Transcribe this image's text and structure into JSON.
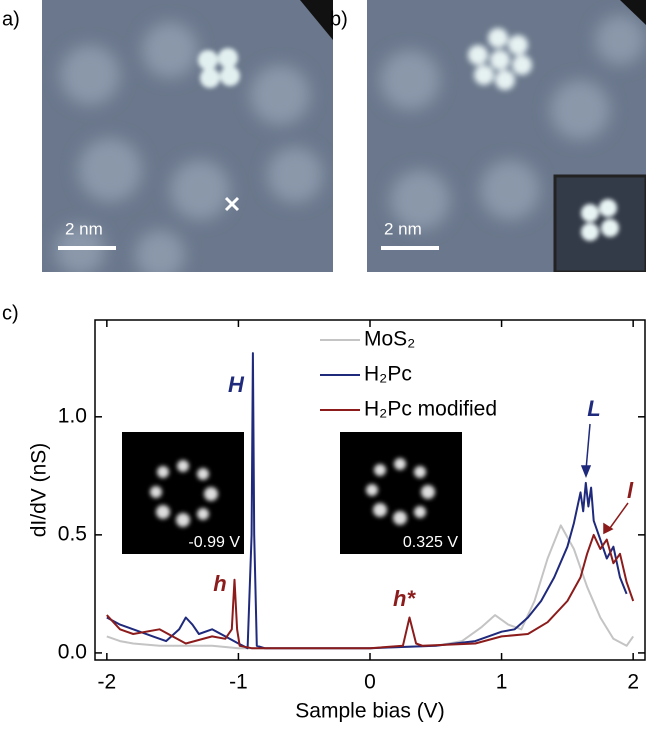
{
  "panels": {
    "a": "a)",
    "b": "b)",
    "c": "c)"
  },
  "scale_bars": [
    "2 nm",
    "2 nm"
  ],
  "chart_data": {
    "type": "line",
    "x_label": "Sample bias (V)",
    "y_label": "dI/dV (nS)",
    "xlim": [
      -2.09,
      2.09
    ],
    "ylim": [
      -0.03,
      1.41
    ],
    "xticks": [
      -2,
      -1,
      0,
      1,
      2
    ],
    "yticks": [
      {
        "value": 0,
        "label": "0.0"
      },
      {
        "value": 0.5,
        "label": "0.5"
      },
      {
        "value": 1,
        "label": "1.0"
      }
    ],
    "legend": "upper right",
    "annotations": [
      "H",
      "h",
      "h*",
      "L",
      "l"
    ],
    "insets": [
      "-0.99 V",
      "0.325 V"
    ],
    "series": [
      {
        "name": "MoS₂",
        "color": "#c4c4c4",
        "x": [
          -2,
          -1.9,
          -1.8,
          -1.6,
          -1.4,
          -1.2,
          -1,
          -0.5,
          0,
          0.5,
          0.7,
          0.85,
          0.95,
          1.05,
          1.15,
          1.25,
          1.35,
          1.45,
          1.55,
          1.65,
          1.75,
          1.85,
          1.95,
          2
        ],
        "values": [
          0.07,
          0.05,
          0.04,
          0.03,
          0.03,
          0.03,
          0.02,
          0.02,
          0.02,
          0.03,
          0.05,
          0.11,
          0.16,
          0.12,
          0.1,
          0.22,
          0.4,
          0.54,
          0.44,
          0.28,
          0.15,
          0.06,
          0.03,
          0.07
        ]
      },
      {
        "name": "H₂Pc",
        "color": "#1f2a7c",
        "x": [
          -2,
          -1.9,
          -1.8,
          -1.65,
          -1.55,
          -1.45,
          -1.4,
          -1.35,
          -1.3,
          -1.2,
          -1.1,
          -1,
          -0.93,
          -0.9,
          -0.89,
          -0.88,
          -0.86,
          -0.8,
          0,
          0.5,
          0.8,
          1,
          1.1,
          1.2,
          1.3,
          1.4,
          1.5,
          1.55,
          1.6,
          1.62,
          1.64,
          1.66,
          1.68,
          1.7,
          1.75,
          1.8,
          1.85,
          1.9,
          1.95
        ],
        "values": [
          0.15,
          0.12,
          0.1,
          0.07,
          0.05,
          0.1,
          0.15,
          0.12,
          0.08,
          0.1,
          0.07,
          0.04,
          0.02,
          0.5,
          1.27,
          0.5,
          0.03,
          0.02,
          0.02,
          0.03,
          0.05,
          0.09,
          0.1,
          0.15,
          0.22,
          0.32,
          0.45,
          0.55,
          0.68,
          0.6,
          0.72,
          0.62,
          0.7,
          0.56,
          0.48,
          0.4,
          0.45,
          0.32,
          0.25
        ]
      },
      {
        "name": "H₂Pc modified",
        "color": "#8c1c1c",
        "x": [
          -2,
          -1.9,
          -1.8,
          -1.6,
          -1.4,
          -1.2,
          -1.1,
          -1.05,
          -1.03,
          -1.01,
          -0.99,
          -0.9,
          0,
          0.25,
          0.3,
          0.35,
          0.4,
          0.8,
          1,
          1.2,
          1.35,
          1.5,
          1.6,
          1.65,
          1.7,
          1.75,
          1.8,
          1.85,
          1.9,
          1.95,
          2
        ],
        "values": [
          0.16,
          0.1,
          0.08,
          0.1,
          0.04,
          0.07,
          0.06,
          0.1,
          0.31,
          0.1,
          0.03,
          0.02,
          0.02,
          0.03,
          0.15,
          0.04,
          0.03,
          0.04,
          0.07,
          0.08,
          0.13,
          0.22,
          0.32,
          0.42,
          0.5,
          0.44,
          0.48,
          0.38,
          0.42,
          0.3,
          0.22
        ]
      }
    ]
  }
}
